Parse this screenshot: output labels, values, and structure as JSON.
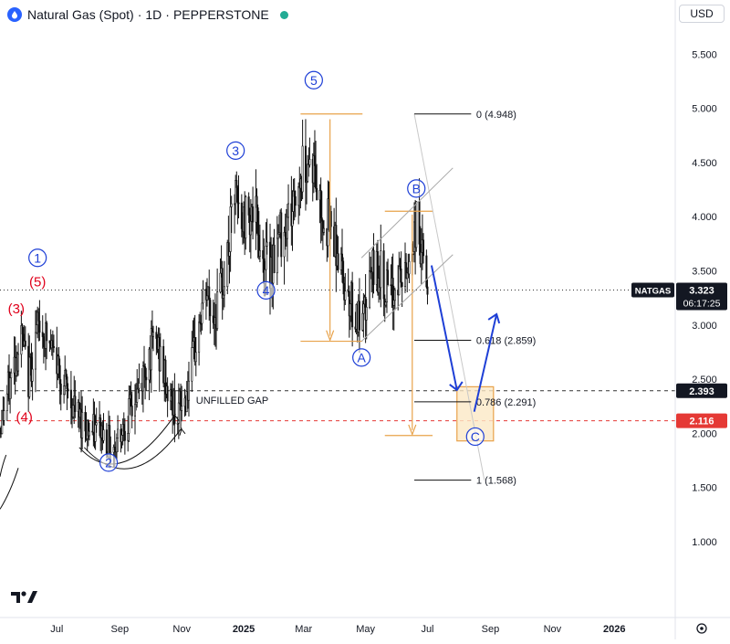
{
  "header": {
    "symbol": "Natural Gas (Spot)",
    "sep1": "·",
    "interval": "1D",
    "sep2": "·",
    "broker": "PEPPERSTONE"
  },
  "currency_button": "USD",
  "price_tags": {
    "ticker": "NATGAS",
    "last_price": "3.323",
    "countdown": "06:17:25",
    "gap_top": "2.393",
    "gap_bottom": "2.116"
  },
  "annotations": {
    "unfilled_gap": "UNFILLED GAP",
    "fib_0": "0 (4.948)",
    "fib_618": "0.618 (2.859)",
    "fib_786": "0.786 (2.291)",
    "fib_1": "1 (1.568)"
  },
  "wave_labels": [
    {
      "text": "(3)",
      "x": "2024-05-22",
      "y": 3.15,
      "color": "#e0001b",
      "circled": false
    },
    {
      "text": "(5)",
      "x": "2024-06-12",
      "y": 3.4,
      "color": "#e0001b",
      "circled": false
    },
    {
      "text": "(4)",
      "x": "2024-05-30",
      "y": 2.15,
      "color": "#e0001b",
      "circled": false
    },
    {
      "text": "1",
      "x": "2024-06-12",
      "y": 3.62,
      "color": "#1e3fd6",
      "circled": true
    },
    {
      "text": "2",
      "x": "2024-08-21",
      "y": 1.73,
      "color": "#1e3fd6",
      "circled": true
    },
    {
      "text": "3",
      "x": "2024-12-24",
      "y": 4.61,
      "color": "#1e3fd6",
      "circled": true
    },
    {
      "text": "4",
      "x": "2025-01-23",
      "y": 3.32,
      "color": "#1e3fd6",
      "circled": true
    },
    {
      "text": "5",
      "x": "2025-03-11",
      "y": 5.26,
      "color": "#1e3fd6",
      "circled": true
    },
    {
      "text": "A",
      "x": "2025-04-27",
      "y": 2.7,
      "color": "#1e3fd6",
      "circled": true
    },
    {
      "text": "B",
      "x": "2025-06-20",
      "y": 4.26,
      "color": "#1e3fd6",
      "circled": true
    },
    {
      "text": "C",
      "x": "2025-08-17",
      "y": 1.97,
      "color": "#1e3fd6",
      "circled": true
    }
  ],
  "chart_data": {
    "type": "candlestick",
    "x_axis": {
      "ticks": [
        {
          "label": "Jul",
          "date": "2024-07-01"
        },
        {
          "label": "Sep",
          "date": "2024-09-01"
        },
        {
          "label": "Nov",
          "date": "2024-11-01"
        },
        {
          "label": "2025",
          "date": "2025-01-01"
        },
        {
          "label": "Mar",
          "date": "2025-03-01"
        },
        {
          "label": "May",
          "date": "2025-05-01"
        },
        {
          "label": "Jul",
          "date": "2025-07-01"
        },
        {
          "label": "Sep",
          "date": "2025-09-01"
        },
        {
          "label": "Nov",
          "date": "2025-11-01"
        },
        {
          "label": "2026",
          "date": "2026-01-01"
        }
      ],
      "range": [
        "2024-05-06",
        "2026-03-02"
      ]
    },
    "y_axis": {
      "ticks": [
        "1.000",
        "1.500",
        "2.000",
        "2.500",
        "3.000",
        "3.500",
        "4.000",
        "4.500",
        "5.000",
        "5.500"
      ],
      "range": [
        0.3,
        6.0
      ],
      "position": "right"
    },
    "price_path": [
      {
        "x": "2024-05-06",
        "y": 2.05
      },
      {
        "x": "2024-05-13",
        "y": 2.35
      },
      {
        "x": "2024-05-20",
        "y": 2.65
      },
      {
        "x": "2024-05-27",
        "y": 2.88
      },
      {
        "x": "2024-06-03",
        "y": 2.5
      },
      {
        "x": "2024-06-10",
        "y": 2.9
      },
      {
        "x": "2024-06-14",
        "y": 3.0
      },
      {
        "x": "2024-06-24",
        "y": 2.8
      },
      {
        "x": "2024-07-01",
        "y": 2.65
      },
      {
        "x": "2024-07-08",
        "y": 2.45
      },
      {
        "x": "2024-07-15",
        "y": 2.3
      },
      {
        "x": "2024-07-22",
        "y": 2.15
      },
      {
        "x": "2024-07-29",
        "y": 2.1
      },
      {
        "x": "2024-08-05",
        "y": 2.0
      },
      {
        "x": "2024-08-12",
        "y": 2.05
      },
      {
        "x": "2024-08-19",
        "y": 1.95
      },
      {
        "x": "2024-08-26",
        "y": 1.88
      },
      {
        "x": "2024-09-02",
        "y": 2.05
      },
      {
        "x": "2024-09-09",
        "y": 2.15
      },
      {
        "x": "2024-09-16",
        "y": 2.3
      },
      {
        "x": "2024-09-23",
        "y": 2.5
      },
      {
        "x": "2024-09-30",
        "y": 2.75
      },
      {
        "x": "2024-10-07",
        "y": 2.85
      },
      {
        "x": "2024-10-14",
        "y": 2.55
      },
      {
        "x": "2024-10-21",
        "y": 2.3
      },
      {
        "x": "2024-10-28",
        "y": 2.2
      },
      {
        "x": "2024-11-04",
        "y": 2.3
      },
      {
        "x": "2024-11-11",
        "y": 2.6
      },
      {
        "x": "2024-11-18",
        "y": 3.0
      },
      {
        "x": "2024-11-25",
        "y": 3.3
      },
      {
        "x": "2024-12-02",
        "y": 3.05
      },
      {
        "x": "2024-12-09",
        "y": 3.3
      },
      {
        "x": "2024-12-16",
        "y": 3.6
      },
      {
        "x": "2024-12-23",
        "y": 4.2
      },
      {
        "x": "2024-12-30",
        "y": 3.9
      },
      {
        "x": "2025-01-06",
        "y": 4.1
      },
      {
        "x": "2025-01-13",
        "y": 3.95
      },
      {
        "x": "2025-01-20",
        "y": 3.6
      },
      {
        "x": "2025-01-27",
        "y": 3.55
      },
      {
        "x": "2025-02-03",
        "y": 3.75
      },
      {
        "x": "2025-02-10",
        "y": 3.95
      },
      {
        "x": "2025-02-17",
        "y": 4.05
      },
      {
        "x": "2025-02-24",
        "y": 4.3
      },
      {
        "x": "2025-03-03",
        "y": 4.55
      },
      {
        "x": "2025-03-10",
        "y": 4.5
      },
      {
        "x": "2025-03-17",
        "y": 4.1
      },
      {
        "x": "2025-03-24",
        "y": 3.95
      },
      {
        "x": "2025-03-31",
        "y": 3.85
      },
      {
        "x": "2025-04-07",
        "y": 3.5
      },
      {
        "x": "2025-04-14",
        "y": 3.3
      },
      {
        "x": "2025-04-21",
        "y": 3.1
      },
      {
        "x": "2025-04-28",
        "y": 2.95
      },
      {
        "x": "2025-05-05",
        "y": 3.4
      },
      {
        "x": "2025-05-12",
        "y": 3.55
      },
      {
        "x": "2025-05-19",
        "y": 3.4
      },
      {
        "x": "2025-05-26",
        "y": 3.2
      },
      {
        "x": "2025-06-02",
        "y": 3.45
      },
      {
        "x": "2025-06-09",
        "y": 3.4
      },
      {
        "x": "2025-06-16",
        "y": 3.75
      },
      {
        "x": "2025-06-20",
        "y": 3.95
      },
      {
        "x": "2025-06-27",
        "y": 3.55
      },
      {
        "x": "2025-07-02",
        "y": 3.32
      }
    ],
    "horizontal_lines": [
      {
        "name": "last-price",
        "y": 3.323,
        "style": "dotted",
        "color": "#333333"
      },
      {
        "name": "gap-top",
        "y": 2.393,
        "style": "dashed",
        "color": "#333333"
      },
      {
        "name": "gap-bottom",
        "y": 2.116,
        "style": "dashed",
        "color": "#e53935"
      }
    ],
    "fib_levels": [
      {
        "level": "0",
        "y": 4.948
      },
      {
        "level": "0.618",
        "y": 2.859
      },
      {
        "level": "0.786",
        "y": 2.291
      },
      {
        "level": "1",
        "y": 1.568
      }
    ],
    "projection": [
      {
        "x": "2025-07-05",
        "y": 3.55
      },
      {
        "x": "2025-07-30",
        "y": 2.4
      },
      {
        "x": "2025-08-16",
        "y": 2.2
      },
      {
        "x": "2025-09-07",
        "y": 3.1
      }
    ],
    "colors": {
      "up": "#111111",
      "down": "#111111",
      "fib": "#e8a24a",
      "projection": "#1e3fd6",
      "wave": "#1e3fd6",
      "subwave": "#e0001b"
    }
  }
}
